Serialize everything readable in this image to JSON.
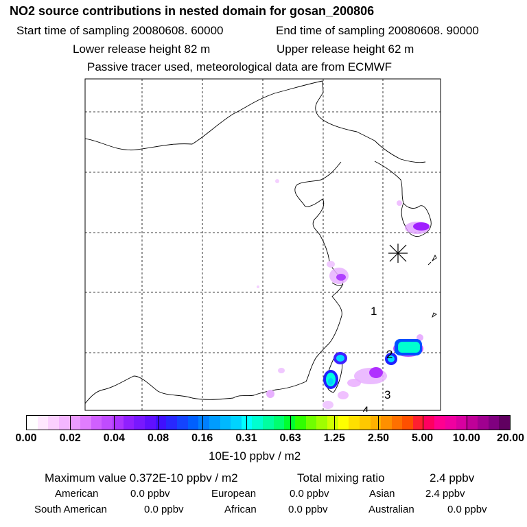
{
  "header": {
    "title": "NO2 source contributions in nested domain for gosan_200806",
    "start_time": "Start time of sampling 20080608. 60000",
    "end_time": "End time of sampling 20080608. 90000",
    "lower_release": "Lower release height   82 m",
    "upper_release": "Upper release height   62 m",
    "tracer_note": "Passive tracer used, meteorological data are from ECMWF"
  },
  "map": {
    "labels": [
      "1",
      "2",
      "3",
      "4"
    ],
    "receptor_marker": "gosan-receptor-star"
  },
  "colorbar": {
    "tick_labels": [
      "0.00",
      "0.02",
      "0.04",
      "0.08",
      "0.16",
      "0.31",
      "0.63",
      "1.25",
      "2.50",
      "5.00",
      "10.00",
      "20.00"
    ],
    "colors": [
      "#ffffff",
      "#ffe8ff",
      "#fbd0ff",
      "#f4b6ff",
      "#ec9cff",
      "#e07dff",
      "#d060ff",
      "#c04cff",
      "#ac34ff",
      "#9020ff",
      "#7818ff",
      "#6010ff",
      "#4010ff",
      "#2828ff",
      "#1444ff",
      "#0060ff",
      "#0080ff",
      "#009cff",
      "#00b8ff",
      "#00d4ff",
      "#00ffff",
      "#00ffd0",
      "#00ffa0",
      "#00ff70",
      "#00ff30",
      "#30ff00",
      "#70ff00",
      "#a0ff00",
      "#d0ff00",
      "#ffff00",
      "#ffe000",
      "#ffc800",
      "#ffb000",
      "#ff9000",
      "#ff7000",
      "#ff5000",
      "#ff2030",
      "#ff0060",
      "#ff0090",
      "#f000a0",
      "#d800a0",
      "#c00098",
      "#a00090",
      "#800080",
      "#600060"
    ],
    "unit": "10E-10 ppbv / m2"
  },
  "summary": {
    "maximum_value": "Maximum value  0.372E-10 ppbv / m2",
    "total_mixing": "Total mixing ratio",
    "total_value": "2.4 ppbv",
    "regions": [
      {
        "name": "American",
        "value": "0.0 ppbv"
      },
      {
        "name": "European",
        "value": "0.0 ppbv"
      },
      {
        "name": "Asian",
        "value": "2.4 ppbv"
      },
      {
        "name": "South American",
        "value": "0.0 ppbv"
      },
      {
        "name": "African",
        "value": "0.0 ppbv"
      },
      {
        "name": "Australian",
        "value": "0.0 ppbv"
      }
    ]
  }
}
